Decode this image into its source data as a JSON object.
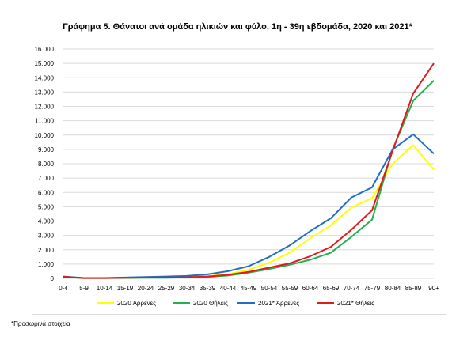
{
  "chart_data": {
    "type": "line",
    "title": "Γράφημα 5. Θάνατοι ανά ομάδα ηλικιών και φύλο, 1η - 39η εβδομάδα, 2020 και 2021*",
    "xlabel": "",
    "ylabel": "",
    "categories": [
      "0-4",
      "5-9",
      "10-14",
      "15-19",
      "20-24",
      "25-29",
      "30-34",
      "35-39",
      "40-44",
      "45-49",
      "50-54",
      "55-59",
      "60-64",
      "65-69",
      "70-74",
      "75-79",
      "80-84",
      "85-89",
      "90+"
    ],
    "ylim": [
      0,
      16000
    ],
    "yticks": [
      0,
      1000,
      2000,
      3000,
      4000,
      5000,
      6000,
      7000,
      8000,
      9000,
      10000,
      11000,
      12000,
      13000,
      14000,
      15000,
      16000
    ],
    "ytick_labels": [
      "0",
      "1.000",
      "2.000",
      "3.000",
      "4.000",
      "5.000",
      "6.000",
      "7.000",
      "8.000",
      "9.000",
      "10.000",
      "11.000",
      "12.000",
      "13.000",
      "14.000",
      "15.000",
      "16.000"
    ],
    "grid": true,
    "legend_position": "bottom",
    "series": [
      {
        "name": "2020 Άρρενες",
        "color": "#ffff00",
        "values": [
          120,
          30,
          30,
          50,
          70,
          80,
          100,
          150,
          300,
          600,
          1100,
          1800,
          2800,
          3700,
          4950,
          5600,
          8000,
          9300,
          7600
        ]
      },
      {
        "name": "2020 Θήλεις",
        "color": "#22b14c",
        "values": [
          100,
          20,
          20,
          30,
          40,
          40,
          70,
          100,
          200,
          400,
          650,
          950,
          1300,
          1800,
          2900,
          4100,
          9000,
          12400,
          13800
        ]
      },
      {
        "name": "2021* Άρρενες",
        "color": "#1f6fc6",
        "values": [
          130,
          30,
          30,
          60,
          100,
          130,
          170,
          280,
          500,
          850,
          1500,
          2300,
          3300,
          4200,
          5650,
          6350,
          9000,
          10050,
          8700
        ]
      },
      {
        "name": "2021* Θήλεις",
        "color": "#e31a1c",
        "values": [
          110,
          20,
          20,
          40,
          60,
          60,
          80,
          130,
          250,
          450,
          750,
          1050,
          1550,
          2200,
          3400,
          4750,
          8900,
          12900,
          15000
        ]
      }
    ]
  },
  "footnote": "*Προσωρινά στοιχεία"
}
